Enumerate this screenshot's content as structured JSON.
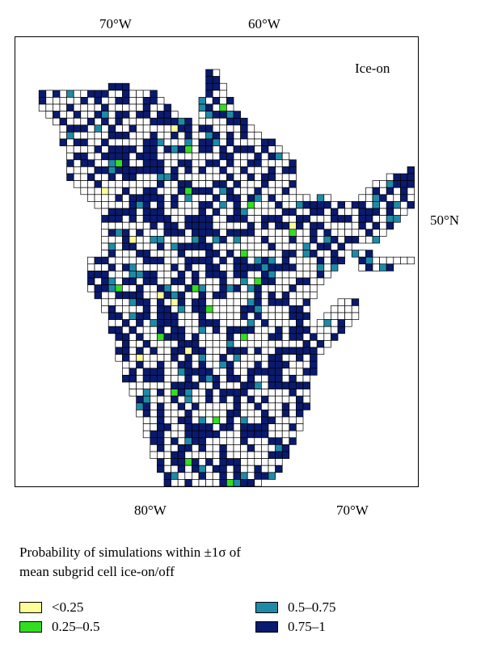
{
  "map": {
    "inset_label": "Ice-on",
    "top_axis": [
      "70°W",
      "60°W"
    ],
    "bottom_axis": [
      "80°W",
      "70°W"
    ],
    "right_axis": [
      "50°N"
    ]
  },
  "legend": {
    "title_line1": "Probability of simulations within ±1σ of",
    "title_line2": "mean subgrid cell ice-on/off",
    "items": [
      {
        "label": "<0.25",
        "color": "#ffff99"
      },
      {
        "label": "0.25–0.5",
        "color": "#33dd22"
      },
      {
        "label": "0.5–0.75",
        "color": "#1f8aa8"
      },
      {
        "label": "0.75–1",
        "color": "#0a1a6e"
      }
    ]
  },
  "colors": {
    "empty_cell": "#ffffff",
    "cell_border": "#000000"
  }
}
